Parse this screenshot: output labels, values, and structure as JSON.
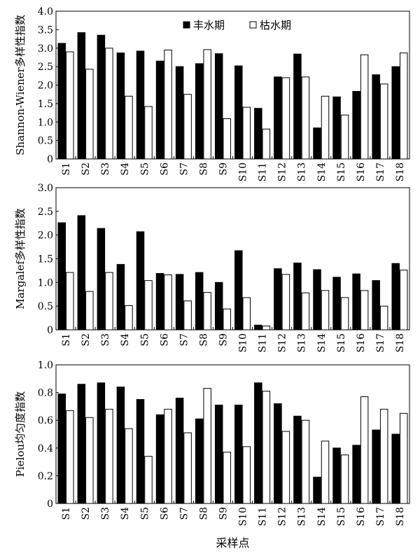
{
  "chart_data": [
    {
      "type": "bar",
      "ylabel": "Shannon-Wiener多样性指数",
      "xlabel": "",
      "ylim": [
        0,
        4.0
      ],
      "yticks": [
        "0",
        "0.5",
        "1.0",
        "1.5",
        "2.0",
        "2.5",
        "3.0",
        "3.5",
        "4.0"
      ],
      "categories": [
        "S1",
        "S2",
        "S3",
        "S4",
        "S5",
        "S6",
        "S7",
        "S8",
        "S9",
        "S10",
        "S11",
        "S12",
        "S13",
        "S14",
        "S15",
        "S16",
        "S17",
        "S18"
      ],
      "legend": {
        "placement": "top-center"
      },
      "series": [
        {
          "name": "丰水期",
          "color": "#000000",
          "values": [
            3.13,
            3.42,
            3.35,
            2.87,
            2.92,
            2.65,
            2.5,
            2.58,
            2.85,
            2.52,
            1.37,
            2.22,
            2.84,
            0.84,
            1.68,
            1.83,
            2.28,
            2.5
          ]
        },
        {
          "name": "枯水期",
          "color": "#ffffff",
          "values": [
            2.9,
            2.43,
            3.0,
            1.7,
            1.42,
            2.95,
            1.75,
            2.96,
            1.09,
            1.4,
            0.81,
            2.2,
            2.22,
            1.7,
            1.19,
            2.82,
            2.03,
            2.87
          ]
        }
      ]
    },
    {
      "type": "bar",
      "ylabel": "Margalef多样性指数",
      "xlabel": "",
      "ylim": [
        0,
        3.0
      ],
      "yticks": [
        "0",
        "0.5",
        "1.0",
        "1.5",
        "2.0",
        "2.5",
        "3.0"
      ],
      "categories": [
        "S1",
        "S2",
        "S3",
        "S4",
        "S5",
        "S6",
        "S7",
        "S8",
        "S9",
        "S10",
        "S11",
        "S12",
        "S13",
        "S14",
        "S15",
        "S16",
        "S17",
        "S18"
      ],
      "series": [
        {
          "name": "丰水期",
          "color": "#000000",
          "values": [
            2.26,
            2.41,
            2.14,
            1.38,
            2.07,
            1.19,
            1.17,
            1.21,
            1.0,
            1.67,
            0.1,
            1.29,
            1.41,
            1.27,
            1.11,
            1.18,
            1.04,
            1.4
          ]
        },
        {
          "name": "枯水期",
          "color": "#ffffff",
          "values": [
            1.21,
            0.81,
            1.21,
            0.51,
            1.04,
            1.16,
            0.61,
            0.79,
            0.44,
            0.68,
            0.08,
            1.17,
            0.78,
            0.83,
            0.68,
            0.83,
            0.5,
            1.26
          ]
        }
      ]
    },
    {
      "type": "bar",
      "ylabel": "Pielou均匀度指数",
      "xlabel": "采样点",
      "ylim": [
        0,
        1.0
      ],
      "yticks": [
        "0",
        "0.2",
        "0.4",
        "0.6",
        "0.8",
        "1.0"
      ],
      "categories": [
        "S1",
        "S2",
        "S3",
        "S4",
        "S5",
        "S6",
        "S7",
        "S8",
        "S9",
        "S10",
        "S11",
        "S12",
        "S13",
        "S14",
        "S15",
        "S16",
        "S17",
        "S18"
      ],
      "series": [
        {
          "name": "丰水期",
          "color": "#000000",
          "values": [
            0.79,
            0.86,
            0.87,
            0.84,
            0.75,
            0.64,
            0.76,
            0.61,
            0.71,
            0.71,
            0.87,
            0.72,
            0.63,
            0.19,
            0.4,
            0.42,
            0.53,
            0.5
          ]
        },
        {
          "name": "枯水期",
          "color": "#ffffff",
          "values": [
            0.67,
            0.62,
            0.68,
            0.54,
            0.34,
            0.68,
            0.51,
            0.83,
            0.37,
            0.41,
            0.81,
            0.52,
            0.6,
            0.45,
            0.35,
            0.77,
            0.68,
            0.65
          ]
        }
      ]
    }
  ]
}
